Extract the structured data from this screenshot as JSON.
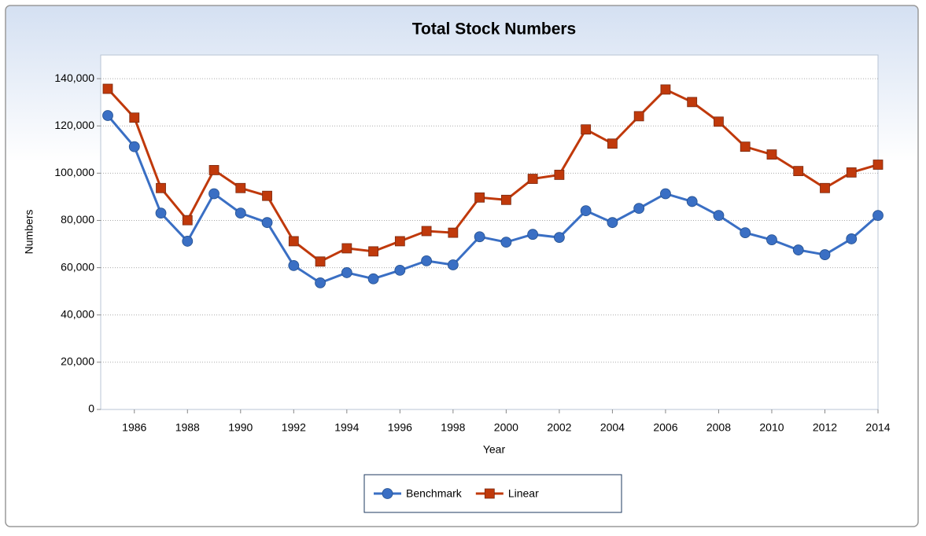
{
  "chart_data": {
    "type": "line",
    "title": "Total Stock Numbers",
    "x_label": "Year",
    "y_label": "Numbers",
    "x": [
      1985,
      1986,
      1987,
      1988,
      1989,
      1990,
      1991,
      1992,
      1993,
      1994,
      1995,
      1996,
      1997,
      1998,
      1999,
      2000,
      2001,
      2002,
      2003,
      2004,
      2005,
      2006,
      2007,
      2008,
      2009,
      2010,
      2011,
      2012,
      2013,
      2014
    ],
    "series": [
      {
        "name": "Benchmark",
        "color": "#3a6fc4",
        "marker": "circle",
        "values": [
          124400,
          111200,
          83100,
          71200,
          91300,
          83100,
          79100,
          60900,
          53600,
          57900,
          55300,
          58900,
          62900,
          61200,
          73100,
          70800,
          74100,
          72800,
          84100,
          79100,
          85100,
          91300,
          88000,
          82100,
          74800,
          71800,
          67500,
          65500,
          72200,
          82100
        ]
      },
      {
        "name": "Linear",
        "color": "#c0390b",
        "marker": "square",
        "values": [
          135700,
          123500,
          93700,
          80100,
          101300,
          93700,
          90400,
          71200,
          62600,
          68200,
          66900,
          71200,
          75500,
          74800,
          89700,
          88700,
          97600,
          99300,
          118500,
          112500,
          124100,
          135400,
          130100,
          121800,
          111200,
          107900,
          100900,
          93700,
          100300,
          103600
        ]
      }
    ],
    "xlim": [
      1985,
      2014
    ],
    "xticks": [
      1986,
      1988,
      1990,
      1992,
      1994,
      1996,
      1998,
      2000,
      2002,
      2004,
      2006,
      2008,
      2010,
      2012,
      2014
    ],
    "ylim": [
      0,
      150000
    ],
    "yticks": [
      0,
      {
        "value": 20000,
        "label": "20,000"
      },
      {
        "value": 40000,
        "label": "40,000"
      },
      {
        "value": 60000,
        "label": "60,000"
      },
      {
        "value": 80000,
        "label": "80,000"
      },
      {
        "value": 100000,
        "label": "100,000"
      },
      {
        "value": 120000,
        "label": "120,000"
      },
      {
        "value": 140000,
        "label": "140,000"
      }
    ],
    "grid": true,
    "legend": "bottom"
  }
}
